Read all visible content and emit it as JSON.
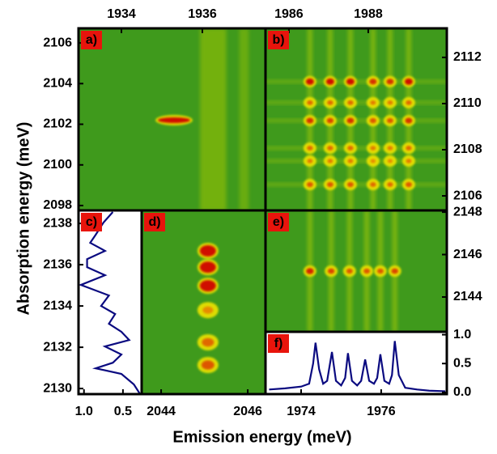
{
  "figure": {
    "xlabel": "Emission energy (meV)",
    "ylabel": "Absorption energy (meV)"
  },
  "chart_data": [
    {
      "type": "heatmap",
      "label": "a)",
      "xaxis_side": "top",
      "yaxis_side": "left",
      "xlim": [
        1932.94,
        1937.56
      ],
      "ylim": [
        2097.76,
        2106.72
      ],
      "xticks": [
        1934,
        1936
      ],
      "yticks": [
        2098,
        2100,
        2102,
        2104,
        2106
      ],
      "x": [
        1935.3
      ],
      "y": [
        2102.2
      ],
      "z": [
        [
          1
        ]
      ]
    },
    {
      "type": "heatmap",
      "label": "b)",
      "xaxis_side": "top",
      "yaxis_side": "right",
      "xlim": [
        1985.41,
        1989.98
      ],
      "ylim": [
        2105.37,
        2113.26
      ],
      "xticks": [
        1986,
        1988
      ],
      "yticks": [
        2106,
        2108,
        2110,
        2112
      ],
      "x": [
        1986.53,
        1987.04,
        1987.55,
        1988.12,
        1988.55,
        1989.02
      ],
      "y": [
        2110.95,
        2110.04,
        2109.26,
        2108.07,
        2107.51,
        2106.49
      ],
      "z": [
        [
          1,
          1,
          1,
          0.8,
          0.8,
          1
        ],
        [
          0.5,
          0.5,
          0.5,
          0.4,
          0.4,
          0.5
        ],
        [
          0.8,
          0.7,
          0.8,
          0.6,
          0.6,
          0.8
        ],
        [
          0.5,
          0.5,
          0.5,
          0.4,
          0.4,
          0.5
        ],
        [
          0.4,
          0.4,
          0.4,
          0.3,
          0.3,
          0.4
        ],
        [
          0.6,
          0.6,
          0.6,
          0.5,
          0.5,
          0.6
        ]
      ]
    },
    {
      "type": "line",
      "orientation": "vertical",
      "label": "c)",
      "xaxis_side": "bottom",
      "yaxis_side": "left",
      "xlim": [
        1.07,
        0.26
      ],
      "ylim": [
        2129.73,
        2138.63
      ],
      "color": "#0a0a80",
      "xticks": [
        {
          "value": 1.0,
          "label": "1.0"
        },
        {
          "value": 0.5,
          "label": "0.5"
        }
      ],
      "yticks": [
        2130,
        2132,
        2134,
        2136,
        2138
      ],
      "y": [
        2138.55,
        2138.04,
        2137.45,
        2137.06,
        2136.67,
        2136.27,
        2135.88,
        2135.49,
        2135.02,
        2134.51,
        2134.0,
        2133.61,
        2133.14,
        2132.75,
        2132.35,
        2132.04,
        2131.65,
        2131.25,
        2130.98,
        2130.71,
        2130.2,
        2129.73
      ],
      "values": [
        0.63,
        0.75,
        0.85,
        0.92,
        0.73,
        0.96,
        0.96,
        0.73,
        1.04,
        0.68,
        0.78,
        0.6,
        0.68,
        0.52,
        0.42,
        0.73,
        0.52,
        0.63,
        0.85,
        0.52,
        0.36,
        0.28
      ]
    },
    {
      "type": "heatmap",
      "label": "d)",
      "xaxis_side": "bottom",
      "yaxis_side": "none",
      "xlim": [
        2043.55,
        2046.41
      ],
      "ylim": [
        2129.73,
        2138.63
      ],
      "xticks": [
        2044,
        2046
      ],
      "yticks": [],
      "x": [
        2045.08
      ],
      "y": [
        2136.67,
        2135.88,
        2134.98,
        2133.8,
        2132.24,
        2131.14
      ],
      "z": [
        [
          1
        ],
        [
          1
        ],
        [
          1
        ],
        [
          0.3
        ],
        [
          0.5
        ],
        [
          0.6
        ]
      ]
    },
    {
      "type": "heatmap",
      "label": "e)",
      "xaxis_side": "none",
      "yaxis_side": "right",
      "xlim": [
        1973.11,
        1977.64
      ],
      "ylim": [
        2142.36,
        2148.08
      ],
      "xticks": [],
      "yticks": [
        2144,
        2146,
        2148
      ],
      "x": [
        1974.22,
        1974.75,
        1975.21,
        1975.64,
        1975.98,
        1976.34
      ],
      "y": [
        2145.22
      ],
      "z": [
        [
          0.9,
          0.7,
          0.6,
          0.6,
          0.6,
          0.7
        ]
      ]
    },
    {
      "type": "line",
      "orientation": "horizontal",
      "label": "f)",
      "xaxis_side": "bottom",
      "yaxis_side": "right",
      "xlim": [
        1973.11,
        1977.64
      ],
      "ylim": [
        -0.03,
        1.05
      ],
      "color": "#0a0a80",
      "xticks": [
        1974,
        1976
      ],
      "yticks": [
        {
          "value": 0,
          "label": "0.0"
        },
        {
          "value": 0.5,
          "label": "0.5"
        },
        {
          "value": 1,
          "label": "1.0"
        }
      ],
      "x": [
        1973.2,
        1973.6,
        1974.0,
        1974.2,
        1974.3,
        1974.36,
        1974.45,
        1974.55,
        1974.65,
        1974.77,
        1974.87,
        1975.0,
        1975.1,
        1975.17,
        1975.27,
        1975.4,
        1975.5,
        1975.6,
        1975.7,
        1975.82,
        1975.9,
        1975.98,
        1976.08,
        1976.2,
        1976.27,
        1976.34,
        1976.44,
        1976.6,
        1976.9,
        1977.2,
        1977.6
      ],
      "values": [
        0.05,
        0.07,
        0.1,
        0.15,
        0.5,
        0.86,
        0.4,
        0.15,
        0.2,
        0.7,
        0.2,
        0.12,
        0.25,
        0.68,
        0.2,
        0.12,
        0.2,
        0.57,
        0.2,
        0.15,
        0.25,
        0.66,
        0.2,
        0.15,
        0.3,
        0.89,
        0.3,
        0.08,
        0.05,
        0.03,
        0.02
      ]
    }
  ]
}
